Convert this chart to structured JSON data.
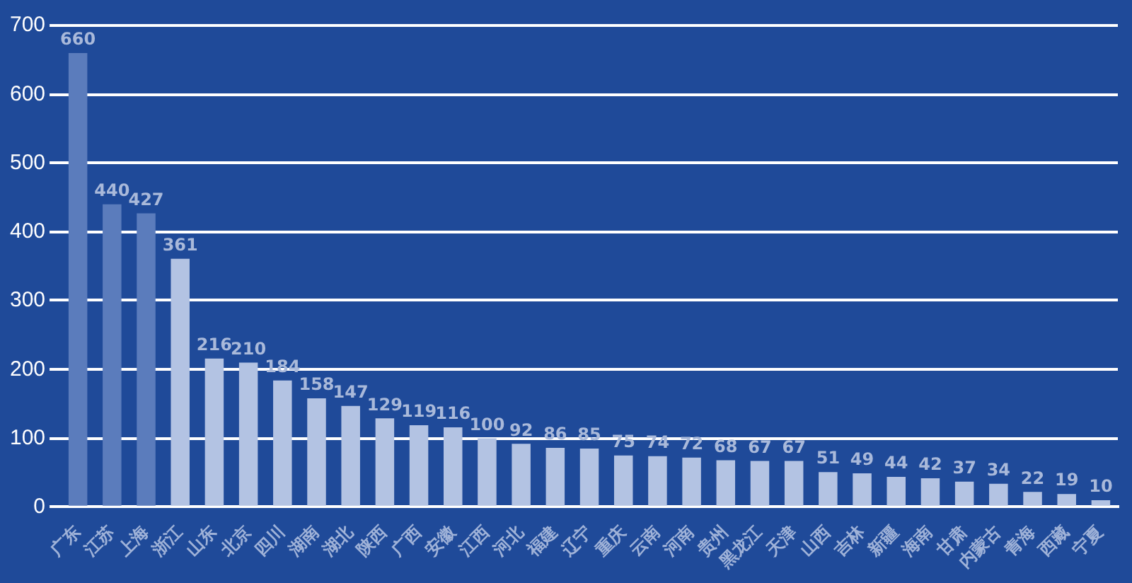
{
  "chart_data": {
    "type": "bar",
    "categories": [
      "广东",
      "江苏",
      "上海",
      "浙江",
      "山东",
      "北京",
      "四川",
      "湖南",
      "湖北",
      "陕西",
      "广西",
      "安徽",
      "江西",
      "河北",
      "福建",
      "辽宁",
      "重庆",
      "云南",
      "河南",
      "贵州",
      "黑龙江",
      "天津",
      "山西",
      "吉林",
      "新疆",
      "海南",
      "甘肃",
      "内蒙古",
      "青海",
      "西藏",
      "宁夏"
    ],
    "values": [
      660,
      440,
      427,
      361,
      216,
      210,
      184,
      158,
      147,
      129,
      119,
      116,
      100,
      92,
      86,
      85,
      75,
      74,
      72,
      68,
      67,
      67,
      51,
      49,
      44,
      42,
      37,
      34,
      22,
      19,
      10
    ],
    "colors": [
      "#5b7cbc",
      "#5b7cbc",
      "#5b7cbc",
      "#b3c3e3",
      "#b3c3e3",
      "#b3c3e3",
      "#b3c3e3",
      "#b3c3e3",
      "#b3c3e3",
      "#b3c3e3",
      "#b3c3e3",
      "#b3c3e3",
      "#b3c3e3",
      "#b3c3e3",
      "#b3c3e3",
      "#b3c3e3",
      "#b3c3e3",
      "#b3c3e3",
      "#b3c3e3",
      "#b3c3e3",
      "#b3c3e3",
      "#b3c3e3",
      "#b3c3e3",
      "#b3c3e3",
      "#b3c3e3",
      "#b3c3e3",
      "#b3c3e3",
      "#b3c3e3",
      "#b3c3e3",
      "#b3c3e3",
      "#b3c3e3"
    ],
    "ylim": [
      0,
      700
    ],
    "yticks": [
      0,
      100,
      200,
      300,
      400,
      500,
      600,
      700
    ],
    "grid": "y",
    "data_labels": true
  }
}
